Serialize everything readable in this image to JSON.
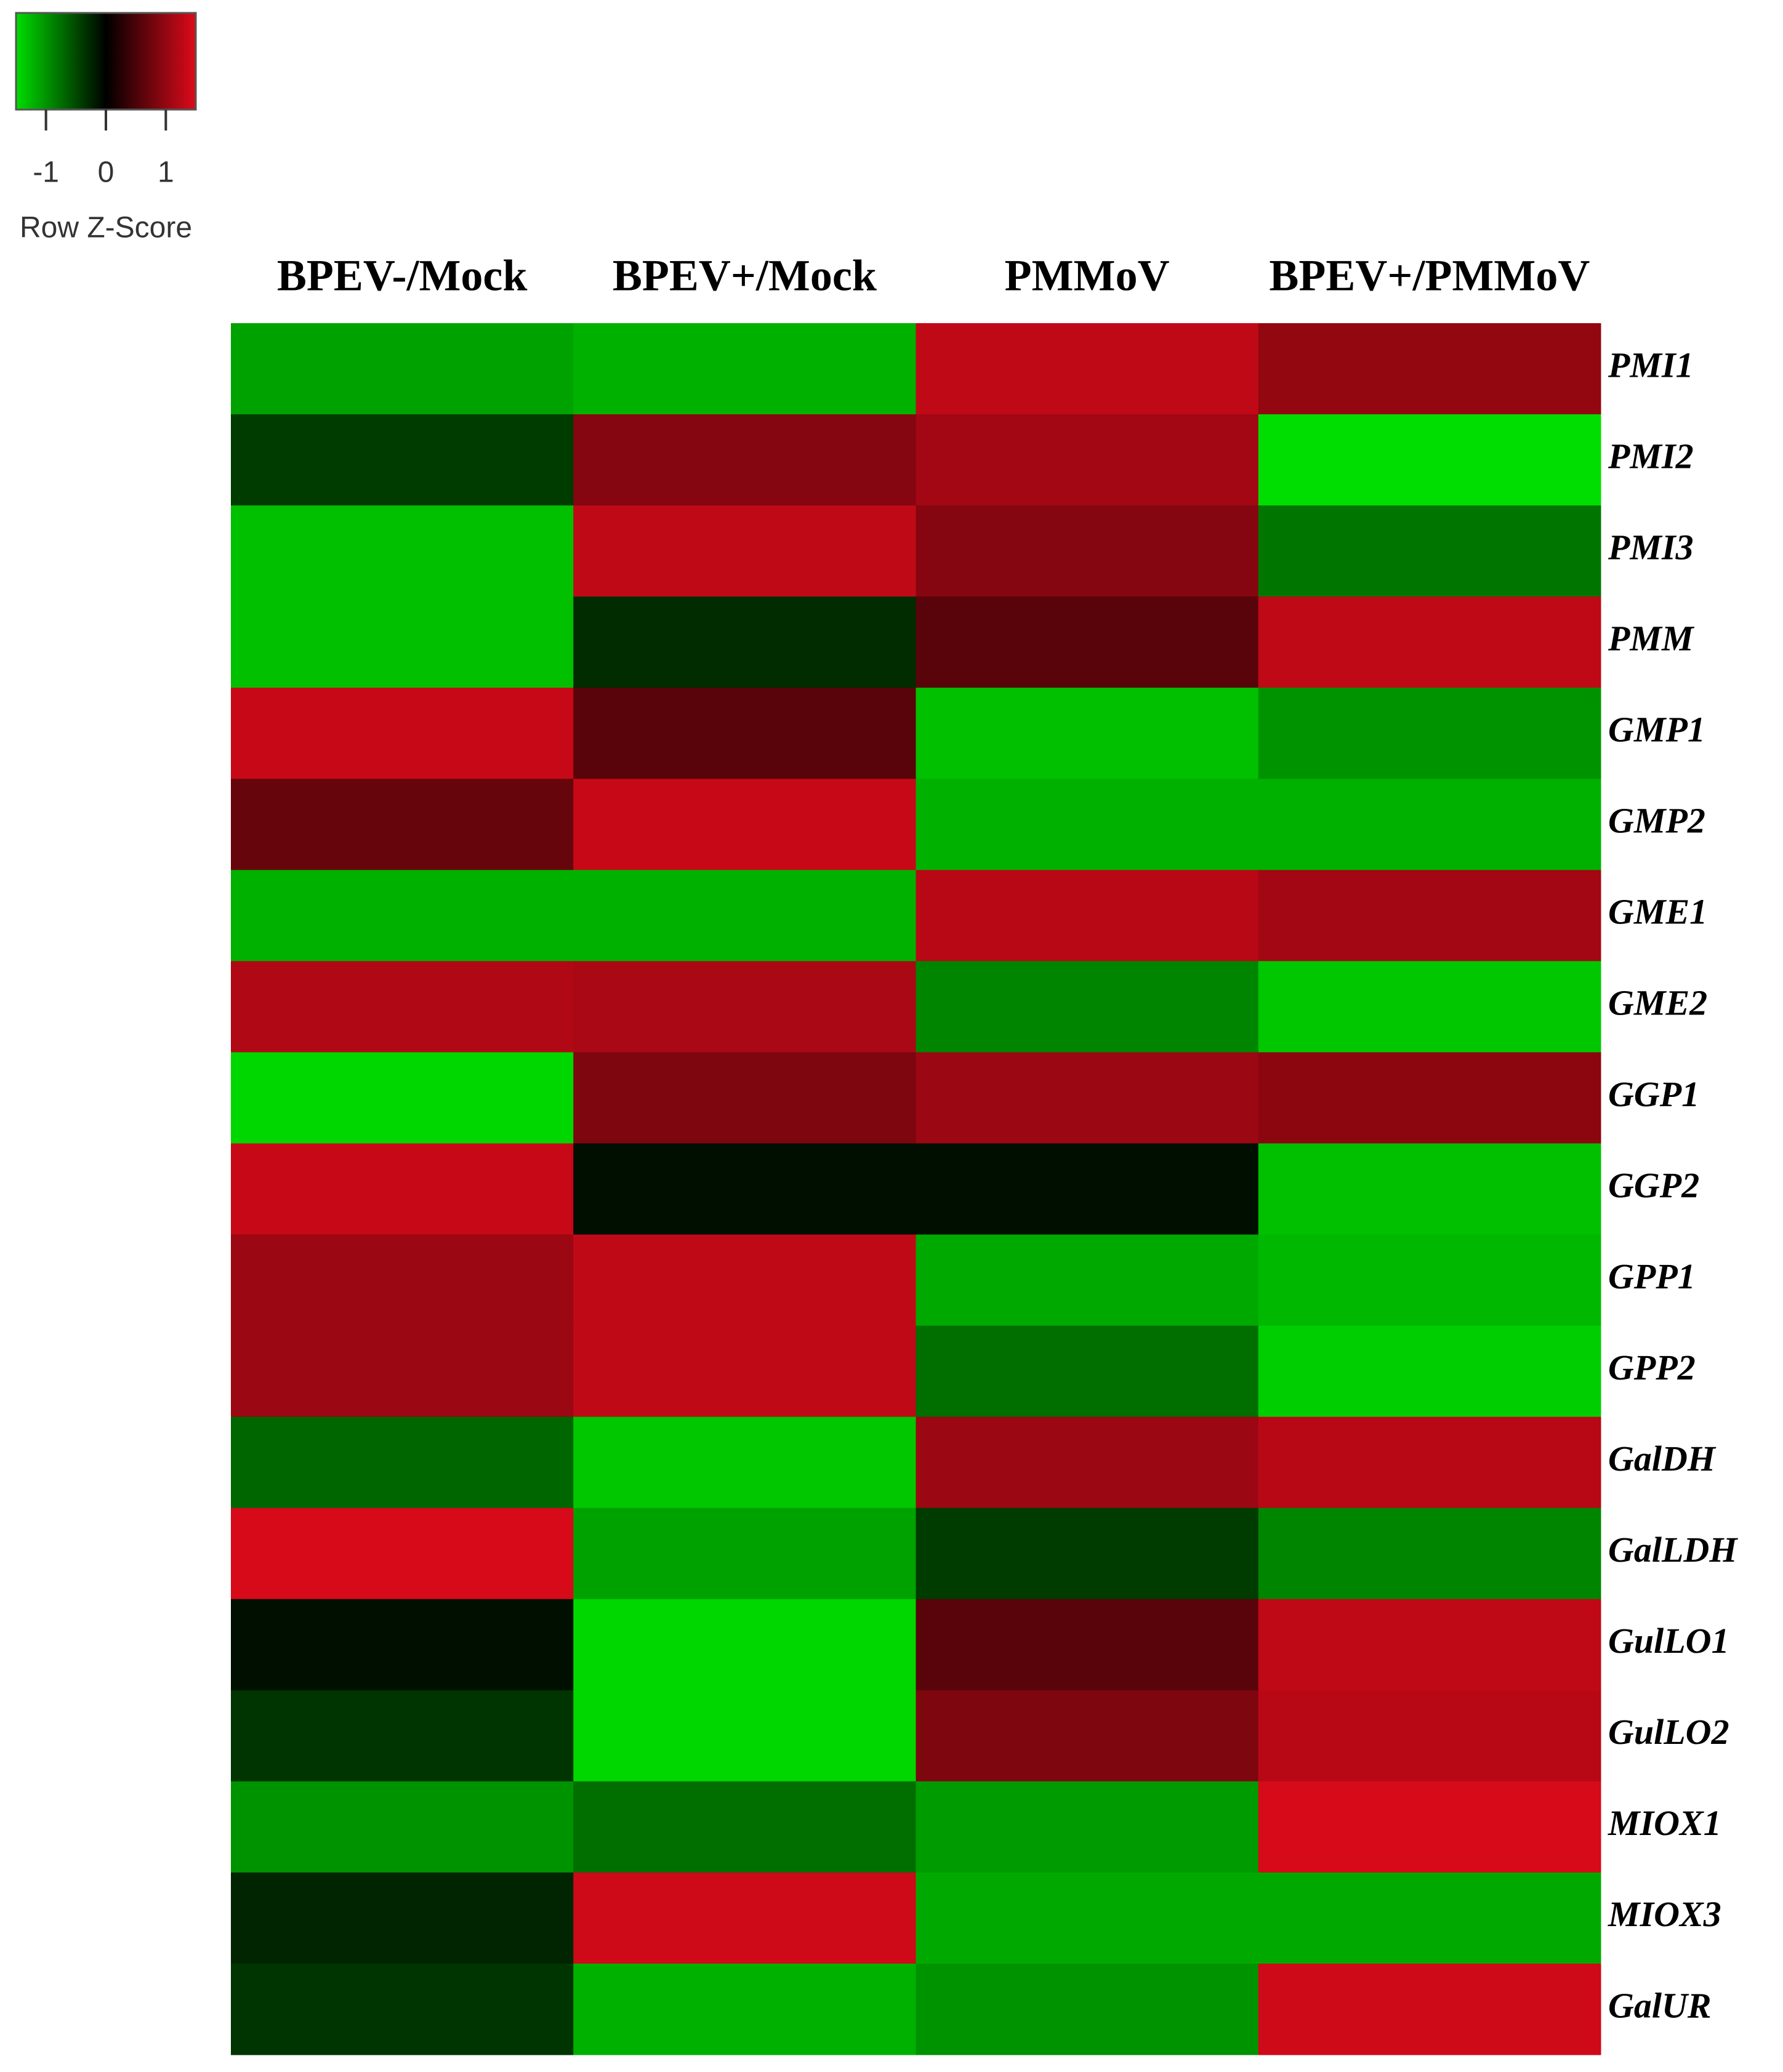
{
  "chart_data": {
    "type": "heatmap",
    "columns": [
      "BPEV-/Mock",
      "BPEV+/Mock",
      "PMMoV",
      "BPEV+/PMMoV"
    ],
    "rows": [
      "PMI1",
      "PMI2",
      "PMI3",
      "PMM",
      "GMP1",
      "GMP2",
      "GME1",
      "GME2",
      "GGP1",
      "GGP2",
      "GPP1",
      "GPP2",
      "GalDH",
      "GalLDH",
      "GulLO1",
      "GulLO2",
      "MIOX1",
      "MIOX3",
      "GalUR"
    ],
    "values": [
      [
        -1.1,
        -1.2,
        1.3,
        1.0
      ],
      [
        -0.4,
        0.9,
        1.1,
        -1.5
      ],
      [
        -1.3,
        1.3,
        0.9,
        -0.8
      ],
      [
        -1.3,
        -0.3,
        0.6,
        1.3
      ],
      [
        1.35,
        0.6,
        -1.3,
        -1.0
      ],
      [
        0.7,
        1.35,
        -1.2,
        -1.2
      ],
      [
        -1.2,
        -1.2,
        1.25,
        1.1
      ],
      [
        1.2,
        1.15,
        -0.9,
        -1.35
      ],
      [
        -1.45,
        0.85,
        1.05,
        0.95
      ],
      [
        1.35,
        -0.1,
        -0.1,
        -1.3
      ],
      [
        1.05,
        1.3,
        -1.15,
        -1.25
      ],
      [
        1.05,
        1.3,
        -0.75,
        -1.4
      ],
      [
        -0.7,
        -1.35,
        1.05,
        1.25
      ],
      [
        1.45,
        -1.1,
        -0.4,
        -0.9
      ],
      [
        -0.1,
        -1.45,
        0.6,
        1.3
      ],
      [
        -0.35,
        -1.45,
        0.85,
        1.25
      ],
      [
        -1.0,
        -0.75,
        -1.05,
        1.45
      ],
      [
        -0.25,
        1.4,
        -1.15,
        -1.15
      ],
      [
        -0.35,
        -1.2,
        -1.0,
        1.4
      ]
    ],
    "colors": [
      "#00dd00",
      "#000000",
      "#dd0a1a"
    ],
    "key": {
      "label": "Row Z-Score",
      "xlim": [
        -1.5,
        1.5
      ],
      "xticks": [
        -1,
        0,
        1
      ]
    }
  }
}
